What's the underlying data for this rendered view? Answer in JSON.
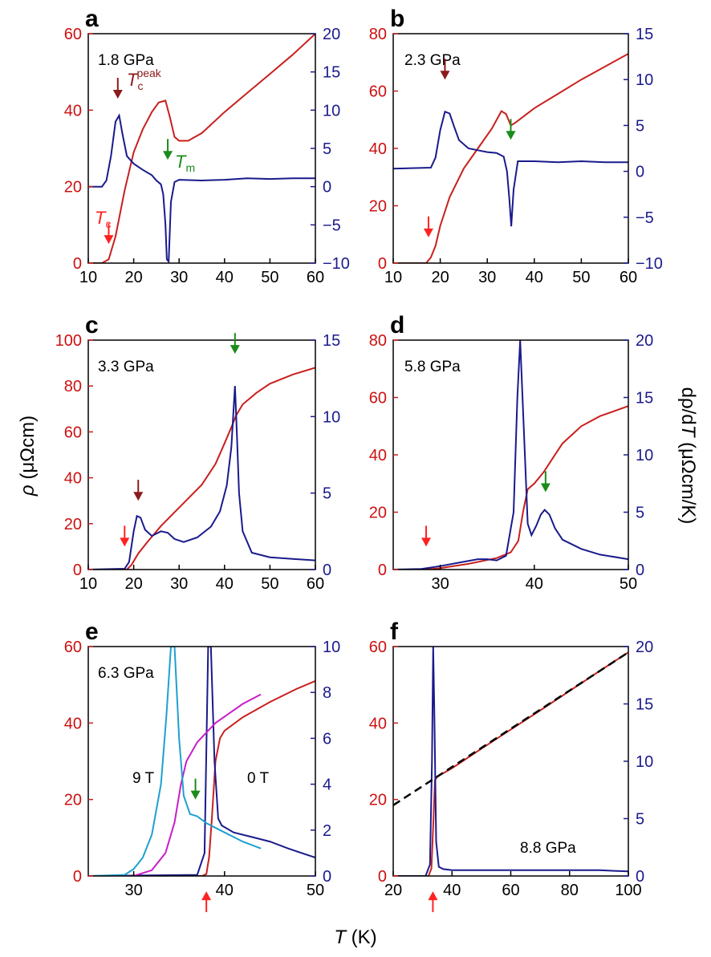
{
  "figure": {
    "xlabel_sym": "T",
    "xlabel_unit": " (K)",
    "ylabel_left_sym": "ρ",
    "ylabel_left_unit": " (μΩcm)",
    "ylabel_right_pre": "dρ/d",
    "ylabel_right_sym": "T",
    "ylabel_right_unit": " (μΩcm/K)"
  },
  "colors": {
    "rho": "#c8201e",
    "drho": "#1a1a8c",
    "rho_9T": "#c81ec8",
    "drho_9T": "#1ea0d0",
    "arrow_red": "#ff2222",
    "arrow_darkred": "#8b1a1a",
    "arrow_green": "#1a8c1a",
    "fit": "#000000"
  },
  "chart_data": [
    {
      "type": "line",
      "panel": "a",
      "pressure": "1.8 GPa",
      "xlim": [
        10,
        60
      ],
      "xticks": [
        10,
        20,
        30,
        40,
        50,
        60
      ],
      "ylim_left": [
        0,
        60
      ],
      "yticks_left": [
        0,
        20,
        40,
        60
      ],
      "ylim_right": [
        -10,
        20
      ],
      "yticks_right": [
        -10,
        -5,
        0,
        5,
        10,
        15,
        20
      ],
      "annotations": [
        {
          "label": "T",
          "sub": "c",
          "sup": "peak",
          "x": 17,
          "color_key": "arrow_darkred"
        },
        {
          "label": "T",
          "sub": "m",
          "x": 27.5,
          "color_key": "arrow_green"
        },
        {
          "label": "T",
          "sub": "c",
          "x": 14.5,
          "color_key": "arrow_red"
        }
      ],
      "arrows": [
        {
          "x": 16.5,
          "y": 43,
          "axis": "left",
          "dir": "down",
          "color_key": "arrow_darkred"
        },
        {
          "x": 27.5,
          "y": 27,
          "axis": "left",
          "dir": "down",
          "color_key": "arrow_green"
        },
        {
          "x": 14.5,
          "y": 5,
          "axis": "left",
          "dir": "down",
          "color_key": "arrow_red"
        }
      ],
      "series": [
        {
          "axis": "left",
          "color_key": "rho",
          "x": [
            10,
            13,
            14.5,
            16,
            18,
            20,
            22,
            24,
            25.5,
            27,
            28,
            29,
            30,
            32,
            35,
            40,
            45,
            50,
            55,
            60
          ],
          "y": [
            0,
            0,
            1,
            7,
            19,
            29,
            35,
            39.5,
            42,
            42.5,
            38,
            33,
            32,
            32,
            34,
            39.5,
            44.5,
            49.5,
            54.5,
            60
          ]
        },
        {
          "axis": "right",
          "color_key": "drho",
          "x": [
            10,
            13,
            14,
            15,
            16,
            16.8,
            17.5,
            18.5,
            20,
            22,
            24,
            25,
            26,
            26.5,
            27,
            27.3,
            27.7,
            28.2,
            29,
            30,
            35,
            40,
            45,
            50,
            55,
            60
          ],
          "y": [
            0,
            0,
            0.8,
            4,
            8.5,
            9.3,
            7,
            4,
            3,
            2.2,
            1.5,
            0.8,
            0.3,
            -1,
            -5,
            -9.5,
            -9.8,
            -2,
            0.6,
            0.9,
            0.8,
            0.9,
            1.1,
            1.0,
            1.1,
            1.1
          ]
        }
      ]
    },
    {
      "type": "line",
      "panel": "b",
      "pressure": "2.3 GPa",
      "xlim": [
        10,
        60
      ],
      "xticks": [
        10,
        20,
        30,
        40,
        50,
        60
      ],
      "ylim_left": [
        0,
        80
      ],
      "yticks_left": [
        0,
        20,
        40,
        60,
        80
      ],
      "ylim_right": [
        -10,
        15
      ],
      "yticks_right": [
        -10,
        -5,
        0,
        5,
        10,
        15
      ],
      "arrows": [
        {
          "x": 21,
          "y": 64,
          "axis": "left",
          "dir": "down",
          "color_key": "arrow_darkred"
        },
        {
          "x": 35,
          "y": 43,
          "axis": "left",
          "dir": "down",
          "color_key": "arrow_green"
        },
        {
          "x": 17.5,
          "y": 9,
          "axis": "left",
          "dir": "down",
          "color_key": "arrow_red"
        }
      ],
      "series": [
        {
          "axis": "left",
          "color_key": "rho",
          "x": [
            10,
            17,
            18,
            19,
            20,
            22,
            25,
            28,
            31,
            33,
            34,
            35,
            36,
            40,
            45,
            50,
            55,
            60
          ],
          "y": [
            0,
            0,
            2,
            6,
            13,
            23,
            33,
            40,
            47,
            53,
            52,
            48,
            49,
            54,
            59,
            64,
            68.5,
            73
          ]
        },
        {
          "axis": "right",
          "color_key": "drho",
          "x": [
            10,
            18,
            19,
            20,
            21,
            22,
            23,
            24,
            26,
            28,
            30,
            32,
            33.5,
            34.2,
            34.7,
            35.1,
            35.6,
            36.5,
            40,
            45,
            50,
            55,
            60
          ],
          "y": [
            0.3,
            0.4,
            1.5,
            4.5,
            6.5,
            6.3,
            4.8,
            3.4,
            2.5,
            2.3,
            2.1,
            2,
            1.6,
            0,
            -3,
            -6,
            -2,
            1.1,
            1.1,
            1.0,
            1.1,
            1.0,
            1.0
          ]
        }
      ]
    },
    {
      "type": "line",
      "panel": "c",
      "pressure": "3.3 GPa",
      "xlim": [
        10,
        60
      ],
      "xticks": [
        10,
        20,
        30,
        40,
        50,
        60
      ],
      "ylim_left": [
        0,
        100
      ],
      "yticks_left": [
        0,
        20,
        40,
        60,
        80,
        100
      ],
      "ylim_right": [
        0,
        15
      ],
      "yticks_right": [
        0,
        5,
        10,
        15
      ],
      "arrows": [
        {
          "x": 21,
          "y": 30,
          "axis": "left",
          "dir": "down",
          "color_key": "arrow_darkred"
        },
        {
          "x": 42.3,
          "y": 94,
          "axis": "left",
          "dir": "down",
          "color_key": "arrow_green"
        },
        {
          "x": 18,
          "y": 10,
          "axis": "left",
          "dir": "down",
          "color_key": "arrow_red"
        }
      ],
      "series": [
        {
          "axis": "left",
          "color_key": "rho",
          "x": [
            10,
            18.5,
            19.5,
            21,
            23,
            26,
            30,
            35,
            38,
            40,
            41.5,
            42.5,
            44,
            47,
            50,
            55,
            60
          ],
          "y": [
            0,
            0,
            2,
            7,
            12,
            19,
            27,
            37,
            46,
            55,
            62,
            67,
            72,
            77,
            81,
            85,
            88
          ]
        },
        {
          "axis": "right",
          "color_key": "drho",
          "x": [
            10,
            18,
            19,
            20,
            20.7,
            21.5,
            22.5,
            24,
            26,
            27.5,
            29,
            31,
            34,
            37,
            39,
            40.5,
            41.5,
            42,
            42.3,
            42.7,
            43.2,
            44,
            46,
            50,
            55,
            60
          ],
          "y": [
            0,
            0.05,
            0.5,
            2.5,
            3.5,
            3.4,
            2.6,
            2.2,
            2.5,
            2.4,
            2.0,
            1.8,
            2.1,
            2.8,
            3.8,
            5.5,
            8,
            10.5,
            12,
            9,
            5,
            2.5,
            1.1,
            0.8,
            0.7,
            0.6
          ]
        }
      ]
    },
    {
      "type": "line",
      "panel": "d",
      "pressure": "5.8 GPa",
      "xlim": [
        25,
        50
      ],
      "xticks": [
        30,
        40,
        50
      ],
      "ylim_left": [
        0,
        80
      ],
      "yticks_left": [
        0,
        20,
        40,
        60,
        80
      ],
      "ylim_right": [
        0,
        20
      ],
      "yticks_right": [
        0,
        5,
        10,
        15,
        20
      ],
      "arrows": [
        {
          "x": 41.2,
          "y": 27,
          "axis": "left",
          "dir": "down",
          "color_key": "arrow_green"
        },
        {
          "x": 28.5,
          "y": 8,
          "axis": "left",
          "dir": "down",
          "color_key": "arrow_red"
        }
      ],
      "series": [
        {
          "axis": "left",
          "color_key": "rho",
          "x": [
            25,
            28.5,
            30,
            33,
            36,
            37.5,
            38.3,
            38.8,
            39.3,
            40,
            41,
            42,
            43,
            45,
            47,
            50
          ],
          "y": [
            0,
            0,
            0.5,
            2,
            4,
            6,
            10,
            20,
            28,
            30,
            34,
            39,
            44,
            50,
            53.5,
            57
          ]
        },
        {
          "axis": "right",
          "color_key": "drho",
          "x": [
            25,
            28,
            30,
            32,
            34,
            35,
            36,
            37,
            37.8,
            38.2,
            38.5,
            38.9,
            39.3,
            39.7,
            40.2,
            40.7,
            41.1,
            41.6,
            42.2,
            43,
            45,
            47,
            50
          ],
          "y": [
            0,
            0.05,
            0.3,
            0.6,
            0.9,
            0.9,
            0.8,
            1.2,
            5,
            15,
            20,
            12,
            4,
            3,
            3.8,
            4.8,
            5.2,
            4.8,
            3.6,
            2.6,
            1.8,
            1.3,
            0.9
          ]
        }
      ]
    },
    {
      "type": "line",
      "panel": "e",
      "pressure": "6.3 GPa",
      "field_labels": [
        "9 T",
        "0 T"
      ],
      "xlim": [
        25,
        50
      ],
      "xticks": [
        30,
        40,
        50
      ],
      "ylim_left": [
        0,
        60
      ],
      "yticks_left": [
        0,
        20,
        40,
        60
      ],
      "ylim_right": [
        0,
        10
      ],
      "yticks_right": [
        0,
        2,
        4,
        6,
        8,
        10
      ],
      "arrows": [
        {
          "x": 36.8,
          "y": 20,
          "axis": "left",
          "dir": "down",
          "color_key": "arrow_green"
        },
        {
          "x": 38,
          "y": -4,
          "axis": "left",
          "dir": "up",
          "color_key": "arrow_red"
        }
      ],
      "series": [
        {
          "axis": "left",
          "color_key": "rho",
          "x": [
            25,
            37.5,
            38,
            38.3,
            38.6,
            39,
            39.5,
            40,
            42,
            45,
            48,
            50
          ],
          "y": [
            0,
            0,
            0.5,
            5,
            15,
            30,
            36,
            38,
            41.5,
            45.5,
            49,
            51
          ]
        },
        {
          "axis": "right",
          "color_key": "drho",
          "x": [
            25,
            37,
            37.8,
            38.2,
            38.5,
            38.9,
            39.3,
            39.7,
            41,
            43,
            45,
            47,
            50
          ],
          "y": [
            0,
            0.05,
            1,
            10,
            10,
            5,
            2.5,
            2.2,
            1.9,
            1.7,
            1.5,
            1.2,
            0.8
          ]
        },
        {
          "axis": "left",
          "color_key": "rho_9T",
          "x": [
            25,
            30,
            32,
            33.5,
            34.5,
            35.2,
            35.8,
            37,
            39,
            42,
            44
          ],
          "y": [
            0,
            0,
            1.5,
            6,
            14,
            24,
            30,
            35,
            40,
            45,
            47.5
          ]
        },
        {
          "axis": "right",
          "color_key": "drho_9T",
          "x": [
            25,
            29,
            30,
            31,
            32,
            33,
            33.6,
            34.1,
            34.5,
            35,
            35.5,
            36.2,
            37,
            38,
            40,
            42,
            44
          ],
          "y": [
            0,
            0.05,
            0.3,
            0.8,
            1.8,
            4,
            7,
            10,
            10,
            6,
            3.5,
            2.7,
            2.6,
            2.3,
            1.9,
            1.5,
            1.2
          ]
        }
      ]
    },
    {
      "type": "line",
      "panel": "f",
      "pressure": "8.8 GPa",
      "xlim": [
        20,
        100
      ],
      "xticks": [
        20,
        40,
        60,
        80,
        100
      ],
      "ylim_left": [
        0,
        60
      ],
      "yticks_left": [
        0,
        20,
        40,
        60
      ],
      "ylim_right": [
        0,
        20
      ],
      "yticks_right": [
        0,
        5,
        10,
        15,
        20
      ],
      "arrows": [
        {
          "x": 33.5,
          "y": -4,
          "axis": "left",
          "dir": "up",
          "color_key": "arrow_red"
        }
      ],
      "series": [
        {
          "axis": "left",
          "color_key": "rho",
          "x": [
            20,
            32,
            33,
            33.7,
            34.2,
            35,
            40,
            50,
            60,
            70,
            80,
            90,
            100
          ],
          "y": [
            0,
            0,
            2,
            15,
            25,
            26,
            28.2,
            33.3,
            38.3,
            43.3,
            48.4,
            53.5,
            58.5
          ]
        },
        {
          "axis": "right",
          "color_key": "drho",
          "x": [
            20,
            31,
            32.5,
            33.2,
            33.6,
            34,
            34.6,
            35.5,
            37,
            40,
            50,
            60,
            70,
            80,
            90,
            100
          ],
          "y": [
            0,
            0,
            1,
            10,
            20,
            14,
            3,
            0.8,
            0.6,
            0.5,
            0.5,
            0.5,
            0.5,
            0.5,
            0.5,
            0.4
          ]
        },
        {
          "axis": "left",
          "color_key": "fit",
          "dashed": true,
          "x": [
            20,
            100
          ],
          "y": [
            18.5,
            58.5
          ]
        }
      ]
    }
  ]
}
